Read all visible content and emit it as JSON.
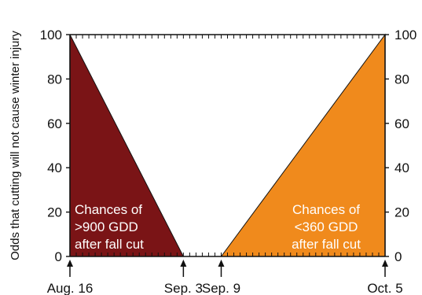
{
  "chart_data": {
    "type": "area",
    "ylabel": "Odds that cutting will not cause winter injury",
    "ylim": [
      0,
      100
    ],
    "yticks": [
      "0",
      "20",
      "40",
      "60",
      "80",
      "100"
    ],
    "x_labels": [
      "Aug. 16",
      "Sep. 3",
      "Sep. 9",
      "Oct. 5"
    ],
    "x_day_of_year": [
      228,
      246,
      252,
      278
    ],
    "xlim_day_of_year": [
      228,
      278
    ],
    "series": [
      {
        "label_lines": [
          "Chances of",
          ">900 GDD",
          "after fall cut"
        ],
        "color": "#7a1416",
        "points": [
          [
            228,
            100
          ],
          [
            246,
            0
          ]
        ]
      },
      {
        "label_lines": [
          "Chances of",
          "<360 GDD",
          "after fall cut"
        ],
        "color": "#f08a1c",
        "points": [
          [
            252,
            0
          ],
          [
            278,
            100
          ]
        ]
      }
    ],
    "grid": false,
    "minor_ticks_per_day": 1
  }
}
